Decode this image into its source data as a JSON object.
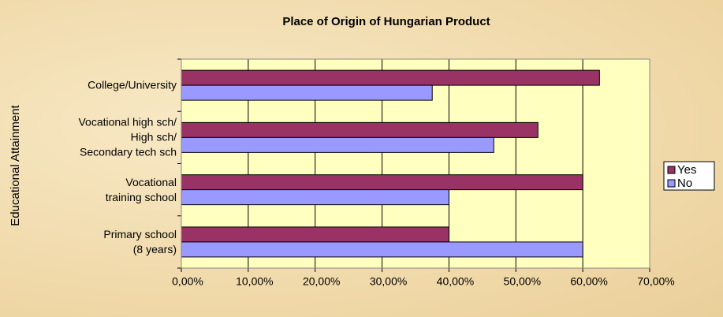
{
  "chart_data": {
    "type": "bar",
    "orientation": "horizontal",
    "title": "Place of Origin of Hungarian Product",
    "y_axis_label": "Educational Attainment",
    "categories": [
      "College/University",
      "Vocational high sch/\nHigh sch/\nSecondary tech sch",
      "Vocational\ntraining school",
      "Primary school\n(8 years)"
    ],
    "series": [
      {
        "name": "Yes",
        "color": "#993366",
        "values": [
          62.5,
          53.3,
          60,
          40
        ]
      },
      {
        "name": "No",
        "color": "#9999ff",
        "values": [
          37.5,
          46.7,
          40,
          60
        ]
      }
    ],
    "xlim": [
      0,
      70
    ],
    "xticks": [
      {
        "value": 0,
        "label": "0,00%"
      },
      {
        "value": 10,
        "label": "10,00%"
      },
      {
        "value": 20,
        "label": "20,00%"
      },
      {
        "value": 30,
        "label": "30,00%"
      },
      {
        "value": 40,
        "label": "40,00%"
      },
      {
        "value": 50,
        "label": "50,00%"
      },
      {
        "value": 60,
        "label": "60,00%"
      },
      {
        "value": 70,
        "label": "70,00%"
      }
    ],
    "grid": true,
    "legend": "right"
  }
}
